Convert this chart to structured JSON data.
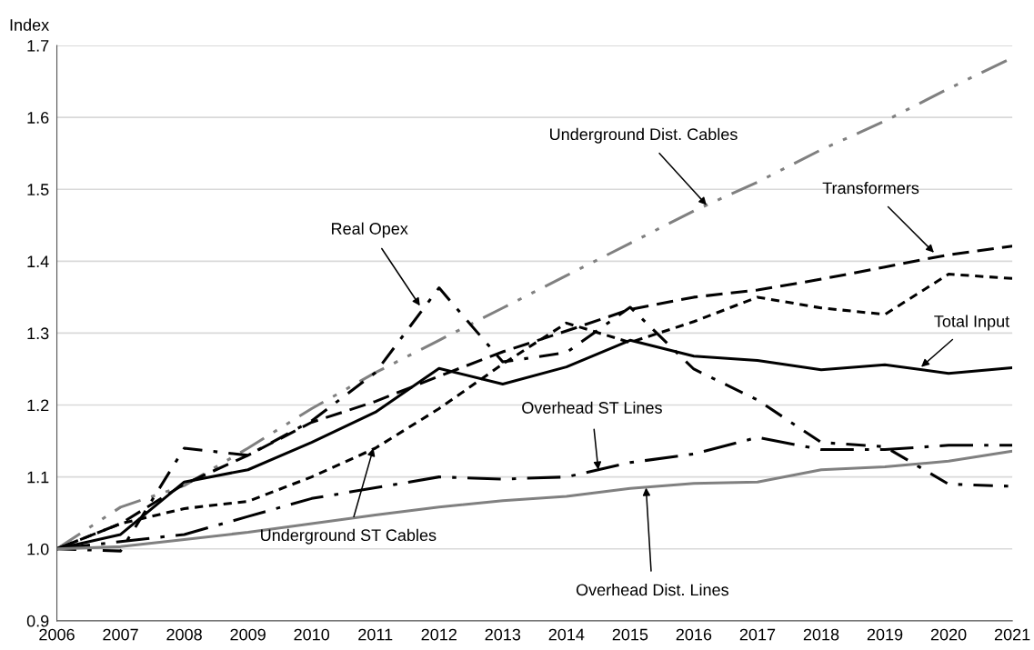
{
  "chart_data": {
    "type": "line",
    "ylabel": "Index",
    "x": [
      2006,
      2007,
      2008,
      2009,
      2010,
      2011,
      2012,
      2013,
      2014,
      2015,
      2016,
      2017,
      2018,
      2019,
      2020,
      2021
    ],
    "series": [
      {
        "color": "#808080",
        "line_style": "dashdotdot",
        "values": [
          1.0,
          1.058,
          1.088,
          1.14,
          1.195,
          1.245,
          1.29,
          1.335,
          1.38,
          1.425,
          1.47,
          1.51,
          1.555,
          1.595,
          1.64,
          1.683
        ]
      },
      {
        "color": "#000000",
        "line_style": "dashed",
        "values": [
          1.0,
          1.035,
          1.09,
          1.13,
          1.176,
          1.205,
          1.24,
          1.274,
          1.303,
          1.333,
          1.35,
          1.36,
          1.375,
          1.392,
          1.409,
          1.421
        ]
      },
      {
        "color": "#000000",
        "line_style": "dashdot",
        "values": [
          1.0,
          0.997,
          1.14,
          1.13,
          1.178,
          1.245,
          1.363,
          1.26,
          1.273,
          1.336,
          1.25,
          1.207,
          1.148,
          1.142,
          1.09,
          1.087
        ]
      },
      {
        "color": "#000000",
        "line_style": "dotted",
        "values": [
          1.0,
          1.035,
          1.056,
          1.066,
          1.1,
          1.14,
          1.195,
          1.257,
          1.314,
          1.287,
          1.316,
          1.35,
          1.335,
          1.326,
          1.382,
          1.376
        ]
      },
      {
        "color": "#000000",
        "line_style": "solid",
        "values": [
          1.0,
          1.02,
          1.093,
          1.11,
          1.148,
          1.19,
          1.251,
          1.229,
          1.253,
          1.29,
          1.268,
          1.262,
          1.249,
          1.256,
          1.244,
          1.252
        ]
      },
      {
        "color": "#000000",
        "line_style": "longdashdot",
        "values": [
          1.0,
          1.01,
          1.02,
          1.045,
          1.07,
          1.085,
          1.1,
          1.097,
          1.1,
          1.12,
          1.132,
          1.155,
          1.138,
          1.138,
          1.144,
          1.144
        ]
      },
      {
        "color": "#808080",
        "line_style": "solid",
        "values": [
          1.0,
          1.003,
          1.013,
          1.023,
          1.035,
          1.047,
          1.058,
          1.067,
          1.073,
          1.084,
          1.091,
          1.093,
          1.11,
          1.114,
          1.122,
          1.136
        ]
      }
    ],
    "annotations": [
      {
        "text": "Underground Dist. Cables",
        "x": 2016.2,
        "y": 1.478
      },
      {
        "text": "Transformers",
        "x": 2019.77,
        "y": 1.412
      },
      {
        "text": "Real Opex",
        "x": 2011.7,
        "y": 1.338
      },
      {
        "text": "Total Input",
        "x": 2019.57,
        "y": 1.253
      },
      {
        "text": "Overhead ST Lines",
        "x": 2014.5,
        "y": 1.11
      },
      {
        "text": "Underground ST Cables",
        "x": 2010.97,
        "y": 1.14
      },
      {
        "text": "Overhead Dist. Lines",
        "x": 2015.25,
        "y": 1.085
      }
    ],
    "xlim": [
      2006,
      2021
    ],
    "xticks": [
      2006,
      2007,
      2008,
      2009,
      2010,
      2011,
      2012,
      2013,
      2014,
      2015,
      2016,
      2017,
      2018,
      2019,
      2020,
      2021
    ],
    "ylim": [
      0.9,
      1.7
    ],
    "yticks": [
      0.9,
      {
        "value": 1.0,
        "label": "1.0"
      },
      1.1,
      1.2,
      1.3,
      1.4,
      1.5,
      1.6,
      1.7
    ],
    "grid": "y",
    "marker": "none"
  }
}
